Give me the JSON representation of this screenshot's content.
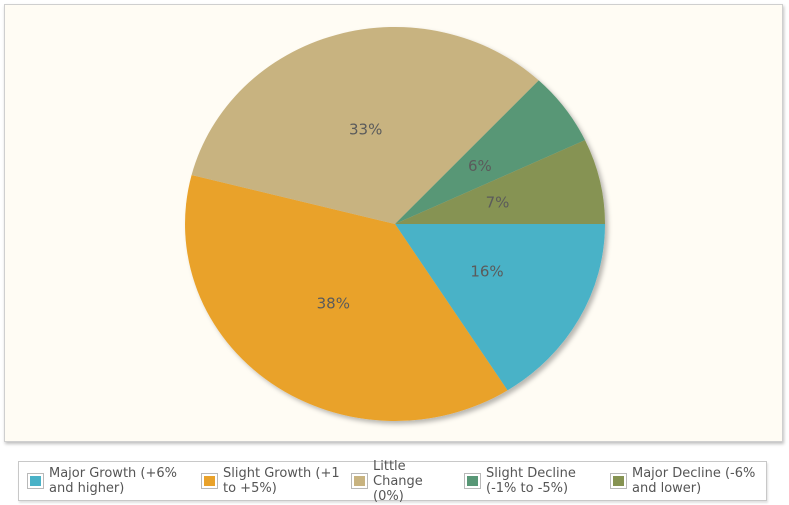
{
  "chart_data": {
    "type": "pie",
    "categories": [
      "Major Growth (+6% and higher)",
      "Slight Growth (+1 to +5%)",
      "Little Change (0%)",
      "Slight Decline (-1% to -5%)",
      "Major Decline (-6% and lower)"
    ],
    "values": [
      16,
      38,
      33,
      6,
      7
    ],
    "data_labels": [
      "16%",
      "38%",
      "33%",
      "6%",
      "7%"
    ],
    "colors": [
      "#4ab2c7",
      "#e9a22b",
      "#c8b380",
      "#589776",
      "#869352"
    ],
    "legend_position": "bottom"
  },
  "legend": {
    "items": [
      {
        "label": "Major Growth (+6%\nand higher)",
        "color": "#4ab2c7"
      },
      {
        "label": "Slight Growth (+1\nto +5%)",
        "color": "#e9a22b"
      },
      {
        "label": "Little\nChange (0%)",
        "color": "#c8b380"
      },
      {
        "label": "Slight Decline\n(-1% to -5%)",
        "color": "#589776"
      },
      {
        "label": "Major Decline (-6%\nand lower)",
        "color": "#869352"
      }
    ]
  }
}
